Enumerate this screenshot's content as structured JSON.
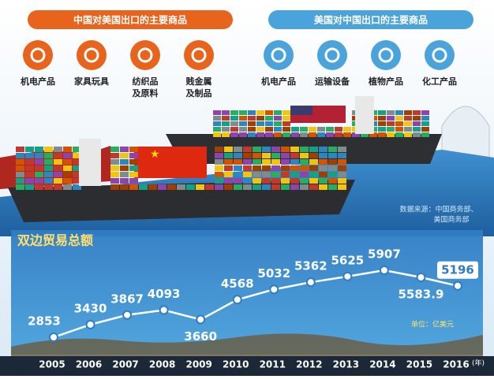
{
  "exports": [
    {
      "title": "中国对美国出口的主要商品",
      "items": [
        [
          "机电产品"
        ],
        [
          "家具玩具"
        ],
        [
          "纺织品",
          "及原料"
        ],
        [
          "贱金属",
          "及制品"
        ]
      ]
    },
    {
      "title": "美国对中国出口的主要商品",
      "items": [
        [
          "机电产品"
        ],
        [
          "运输设备"
        ],
        [
          "植物产品"
        ],
        [
          "化工产品"
        ]
      ]
    }
  ],
  "source": [
    "数据来源：中国商务部、",
    "美国商务部"
  ],
  "chart_data": {
    "type": "line",
    "title": "双边贸易总额",
    "unit": "单位：亿美元",
    "x_unit": "(年)",
    "categories": [
      "2005",
      "2006",
      "2007",
      "2008",
      "2009",
      "2010",
      "2011",
      "2012",
      "2013",
      "2014",
      "2015",
      "2016"
    ],
    "values": [
      2853,
      3430,
      3867,
      4093,
      3660,
      4568,
      5032,
      5362,
      5625,
      5907,
      5583.9,
      5196
    ],
    "color": "#ffffff"
  }
}
